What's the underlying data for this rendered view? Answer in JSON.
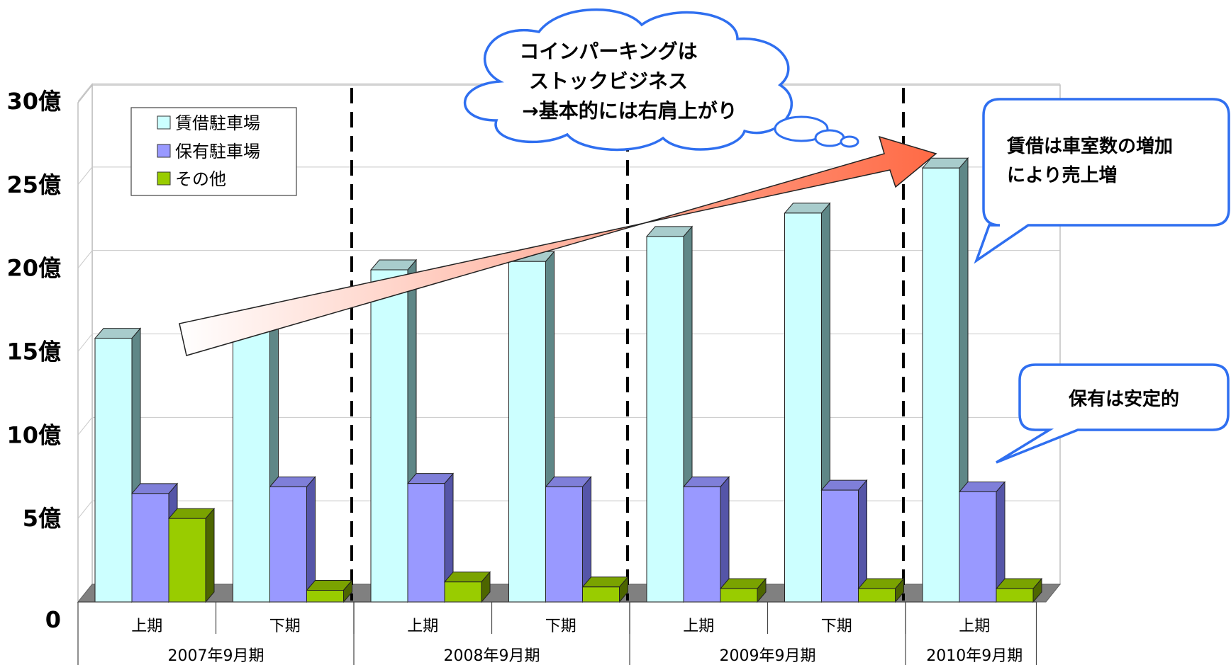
{
  "chart_data": {
    "type": "bar",
    "title": "",
    "ylabel": "",
    "xlabel": "",
    "ylim": [
      0,
      30
    ],
    "y_ticks": [
      {
        "value": 0,
        "label": "0"
      },
      {
        "value": 5,
        "label": "5億"
      },
      {
        "value": 10,
        "label": "10億"
      },
      {
        "value": 15,
        "label": "15億"
      },
      {
        "value": 20,
        "label": "20億"
      },
      {
        "value": 25,
        "label": "25億"
      },
      {
        "value": 30,
        "label": "30億"
      }
    ],
    "categories": [
      "上期",
      "下期",
      "上期",
      "下期",
      "上期",
      "下期",
      "上期"
    ],
    "groups": [
      {
        "label": "2007年9月期",
        "span": 2
      },
      {
        "label": "2008年9月期",
        "span": 2
      },
      {
        "label": "2009年9月期",
        "span": 2
      },
      {
        "label": "2010年9月期",
        "span": 1
      }
    ],
    "series": [
      {
        "name": "賃借駐車場",
        "color": "#ccffff",
        "side": "#5f8787",
        "top": "#a8cccc",
        "values": [
          15.8,
          16.9,
          19.9,
          20.4,
          21.9,
          23.3,
          26.0
        ]
      },
      {
        "name": "保有駐車場",
        "color": "#9999ff",
        "side": "#5555a8",
        "top": "#7f7fd9",
        "values": [
          6.5,
          6.9,
          7.1,
          6.9,
          6.9,
          6.7,
          6.6
        ]
      },
      {
        "name": "その他",
        "color": "#99cc00",
        "side": "#4d6600",
        "top": "#7aa300",
        "values": [
          5.0,
          0.7,
          1.2,
          0.9,
          0.8,
          0.8,
          0.8
        ]
      }
    ],
    "grid": true,
    "legend_position": "top-left"
  },
  "annotations": {
    "cloud_lines": [
      "コインパーキングは",
      "ストックビジネス",
      "→基本的には右肩上がり"
    ],
    "callout_rental_lines": [
      "賃借は車室数の増加",
      "により売上増"
    ],
    "callout_owned": "保有は安定的"
  }
}
